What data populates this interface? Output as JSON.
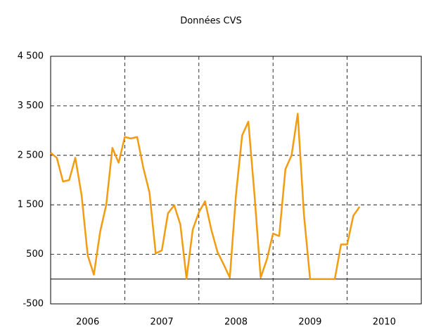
{
  "chart_data": {
    "type": "line",
    "title": "Données CVS",
    "x": [
      2006,
      2006.083,
      2006.167,
      2006.25,
      2006.333,
      2006.417,
      2006.5,
      2006.583,
      2006.667,
      2006.75,
      2006.833,
      2006.917,
      2007,
      2007.083,
      2007.167,
      2007.25,
      2007.333,
      2007.417,
      2007.5,
      2007.583,
      2007.667,
      2007.75,
      2007.833,
      2007.917,
      2008,
      2008.083,
      2008.167,
      2008.25,
      2008.333,
      2008.417,
      2008.5,
      2008.583,
      2008.667,
      2008.75,
      2008.833,
      2008.917,
      2009,
      2009.083,
      2009.167,
      2009.25,
      2009.333,
      2009.417,
      2009.5,
      2009.583,
      2009.667,
      2009.75,
      2009.833,
      2009.917,
      2010,
      2010.083,
      2010.167
    ],
    "series": [
      {
        "name": "Données CVS",
        "color": "#f39c12",
        "values": [
          2550,
          2450,
          1970,
          2000,
          2450,
          1700,
          480,
          90,
          950,
          1500,
          2650,
          2350,
          2870,
          2840,
          2870,
          2250,
          1750,
          520,
          580,
          1330,
          1490,
          1100,
          10,
          1000,
          1350,
          1570,
          1000,
          550,
          300,
          30,
          1700,
          2900,
          3180,
          1700,
          30,
          400,
          920,
          870,
          2220,
          2500,
          3340,
          1300,
          0,
          0,
          0,
          0,
          0,
          700,
          700,
          1280,
          1460
        ]
      }
    ],
    "xlim": [
      2006,
      2011
    ],
    "xticks": [
      2006,
      2007,
      2008,
      2009,
      2010
    ],
    "ylim": [
      -500,
      4500
    ],
    "yticks": [
      -500,
      500,
      {
        "value": 1500,
        "label": "1 500"
      },
      {
        "value": 2500,
        "label": "2 500"
      },
      {
        "value": 3500,
        "label": "3 500"
      },
      {
        "value": 4500,
        "label": "4 500"
      }
    ],
    "grid": true
  }
}
